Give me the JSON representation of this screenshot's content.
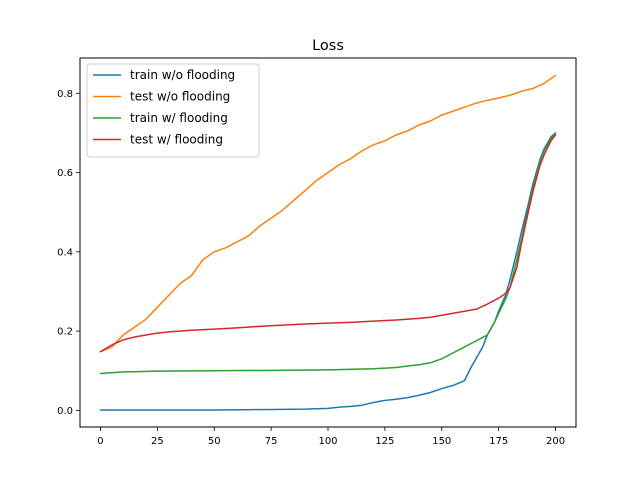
{
  "chart_data": {
    "type": "line",
    "title": "Loss",
    "xlabel": "",
    "ylabel": "",
    "xlim": [
      -9,
      209
    ],
    "ylim": [
      -0.042,
      0.889
    ],
    "xticks": [
      0,
      25,
      50,
      75,
      100,
      125,
      150,
      175,
      200
    ],
    "xtick_labels": [
      "0",
      "25",
      "50",
      "75",
      "100",
      "125",
      "150",
      "175",
      "200"
    ],
    "yticks": [
      0.0,
      0.2,
      0.4,
      0.6,
      0.8
    ],
    "ytick_labels": [
      "0.0",
      "0.2",
      "0.4",
      "0.6",
      "0.8"
    ],
    "grid": false,
    "legend_position": "top-left",
    "series": [
      {
        "name": "train w/o flooding",
        "color": "#1f77b4",
        "x": [
          0,
          25,
          50,
          75,
          90,
          100,
          105,
          110,
          115,
          120,
          125,
          130,
          135,
          140,
          145,
          150,
          155,
          160,
          163,
          165,
          168,
          170,
          173,
          175,
          178,
          180,
          183,
          185,
          188,
          190,
          193,
          195,
          198,
          200
        ],
        "y": [
          0.001,
          0.001,
          0.001,
          0.002,
          0.003,
          0.005,
          0.008,
          0.01,
          0.013,
          0.02,
          0.025,
          0.028,
          0.032,
          0.038,
          0.045,
          0.055,
          0.063,
          0.075,
          0.11,
          0.13,
          0.16,
          0.19,
          0.22,
          0.25,
          0.29,
          0.33,
          0.4,
          0.45,
          0.52,
          0.57,
          0.63,
          0.66,
          0.69,
          0.7
        ]
      },
      {
        "name": "test w/o flooding",
        "color": "#ff7f0e",
        "x": [
          0,
          5,
          10,
          15,
          20,
          25,
          30,
          35,
          40,
          45,
          50,
          55,
          60,
          65,
          70,
          75,
          80,
          85,
          90,
          95,
          100,
          105,
          110,
          115,
          120,
          125,
          130,
          135,
          140,
          145,
          150,
          155,
          160,
          165,
          170,
          175,
          180,
          185,
          190,
          195,
          200
        ],
        "y": [
          0.148,
          0.16,
          0.19,
          0.21,
          0.23,
          0.26,
          0.29,
          0.32,
          0.34,
          0.38,
          0.4,
          0.41,
          0.425,
          0.44,
          0.465,
          0.485,
          0.505,
          0.53,
          0.555,
          0.58,
          0.6,
          0.62,
          0.635,
          0.655,
          0.67,
          0.68,
          0.695,
          0.705,
          0.72,
          0.73,
          0.745,
          0.755,
          0.765,
          0.775,
          0.782,
          0.788,
          0.795,
          0.805,
          0.812,
          0.825,
          0.845
        ]
      },
      {
        "name": "train w/ flooding",
        "color": "#2ca02c",
        "x": [
          0,
          10,
          25,
          50,
          75,
          100,
          120,
          130,
          135,
          140,
          145,
          150,
          155,
          160,
          165,
          170,
          173,
          175,
          178,
          180,
          183,
          185,
          188,
          190,
          193,
          195,
          198,
          200
        ],
        "y": [
          0.093,
          0.097,
          0.099,
          0.1,
          0.101,
          0.102,
          0.105,
          0.108,
          0.112,
          0.115,
          0.12,
          0.13,
          0.145,
          0.16,
          0.175,
          0.19,
          0.22,
          0.245,
          0.28,
          0.31,
          0.38,
          0.43,
          0.51,
          0.56,
          0.625,
          0.655,
          0.685,
          0.7
        ]
      },
      {
        "name": "test w/ flooding",
        "color": "#d62728",
        "x": [
          0,
          5,
          10,
          15,
          20,
          25,
          30,
          40,
          50,
          60,
          70,
          80,
          90,
          100,
          110,
          120,
          130,
          140,
          145,
          150,
          155,
          160,
          165,
          170,
          175,
          178,
          180,
          183,
          185,
          188,
          190,
          193,
          195,
          198,
          200
        ],
        "y": [
          0.148,
          0.165,
          0.178,
          0.185,
          0.19,
          0.195,
          0.198,
          0.202,
          0.205,
          0.208,
          0.212,
          0.215,
          0.218,
          0.22,
          0.222,
          0.225,
          0.228,
          0.232,
          0.235,
          0.24,
          0.245,
          0.25,
          0.255,
          0.268,
          0.283,
          0.295,
          0.31,
          0.36,
          0.42,
          0.5,
          0.55,
          0.615,
          0.645,
          0.68,
          0.695
        ]
      }
    ]
  }
}
